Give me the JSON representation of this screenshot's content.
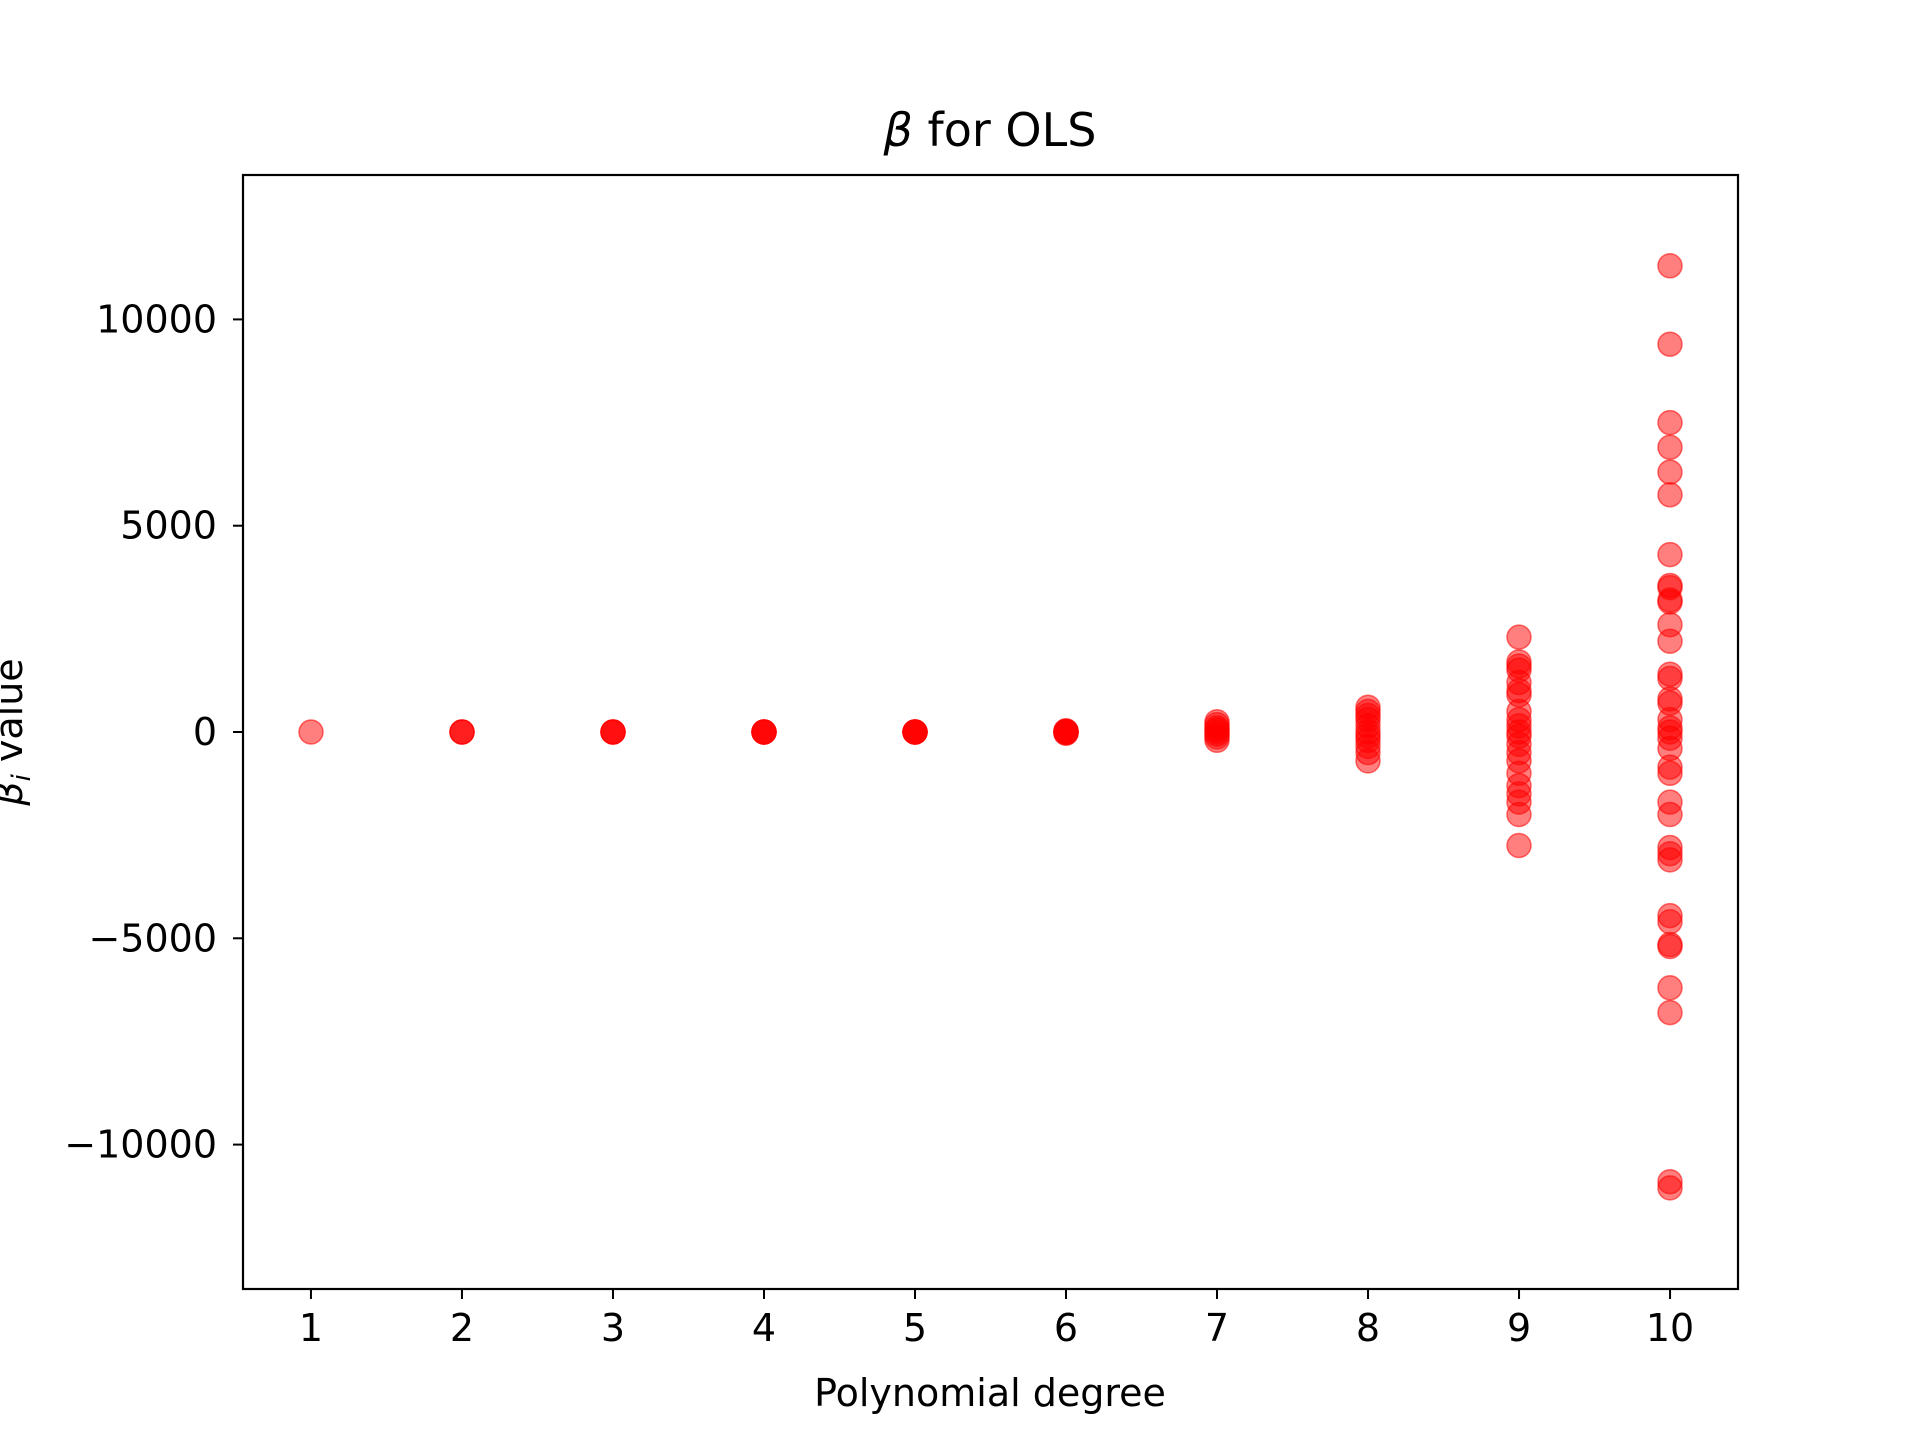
{
  "chart_data": {
    "type": "scatter",
    "title": "β for OLS",
    "title_symbol": "β",
    "title_rest": " for OLS",
    "xlabel": "Polynomial degree",
    "ylabel": "βi value",
    "ylabel_symbol": "β",
    "ylabel_subscript": "i",
    "ylabel_rest": " value",
    "xlim": [
      0.55,
      10.45
    ],
    "ylim": [
      -13500,
      13500
    ],
    "xticks": [
      1,
      2,
      3,
      4,
      5,
      6,
      7,
      8,
      9,
      10
    ],
    "yticks": [
      -10000,
      -5000,
      0,
      5000,
      10000
    ],
    "ytick_labels": [
      "−10000",
      "−5000",
      "0",
      "5000",
      "10000"
    ],
    "grid": false,
    "marker_color": "#ff0000",
    "marker_alpha": 0.5,
    "series": [
      {
        "points": [
          [
            1,
            0
          ],
          [
            2,
            0
          ],
          [
            2,
            0
          ],
          [
            2,
            0
          ],
          [
            3,
            0
          ],
          [
            3,
            0
          ],
          [
            3,
            0
          ],
          [
            3,
            0
          ],
          [
            4,
            0
          ],
          [
            4,
            0
          ],
          [
            4,
            0
          ],
          [
            4,
            0
          ],
          [
            4,
            0
          ],
          [
            5,
            0
          ],
          [
            5,
            0
          ],
          [
            5,
            0
          ],
          [
            5,
            0
          ],
          [
            5,
            0
          ],
          [
            5,
            0
          ],
          [
            6,
            30
          ],
          [
            6,
            0
          ],
          [
            6,
            -30
          ],
          [
            6,
            20
          ],
          [
            6,
            -20
          ],
          [
            6,
            0
          ],
          [
            6,
            10
          ],
          [
            7,
            250
          ],
          [
            7,
            180
          ],
          [
            7,
            100
          ],
          [
            7,
            50
          ],
          [
            7,
            0
          ],
          [
            7,
            -50
          ],
          [
            7,
            -120
          ],
          [
            7,
            -200
          ],
          [
            8,
            600
          ],
          [
            8,
            500
          ],
          [
            8,
            400
          ],
          [
            8,
            300
          ],
          [
            8,
            150
          ],
          [
            8,
            0
          ],
          [
            8,
            -100
          ],
          [
            8,
            -200
          ],
          [
            8,
            -350
          ],
          [
            8,
            -500
          ],
          [
            8,
            -700
          ],
          [
            9,
            2300
          ],
          [
            9,
            1700
          ],
          [
            9,
            1600
          ],
          [
            9,
            1500
          ],
          [
            9,
            1200
          ],
          [
            9,
            1000
          ],
          [
            9,
            900
          ],
          [
            9,
            500
          ],
          [
            9,
            300
          ],
          [
            9,
            150
          ],
          [
            9,
            0
          ],
          [
            9,
            -100
          ],
          [
            9,
            -300
          ],
          [
            9,
            -500
          ],
          [
            9,
            -700
          ],
          [
            9,
            -1000
          ],
          [
            9,
            -1300
          ],
          [
            9,
            -1500
          ],
          [
            9,
            -1700
          ],
          [
            9,
            -2000
          ],
          [
            9,
            -2750
          ],
          [
            10,
            11300
          ],
          [
            10,
            9400
          ],
          [
            10,
            7500
          ],
          [
            10,
            6900
          ],
          [
            10,
            6300
          ],
          [
            10,
            5750
          ],
          [
            10,
            4300
          ],
          [
            10,
            3550
          ],
          [
            10,
            3500
          ],
          [
            10,
            3200
          ],
          [
            10,
            3150
          ],
          [
            10,
            2600
          ],
          [
            10,
            2200
          ],
          [
            10,
            1400
          ],
          [
            10,
            1300
          ],
          [
            10,
            800
          ],
          [
            10,
            700
          ],
          [
            10,
            300
          ],
          [
            10,
            100
          ],
          [
            10,
            0
          ],
          [
            10,
            -150
          ],
          [
            10,
            -400
          ],
          [
            10,
            -850
          ],
          [
            10,
            -1000
          ],
          [
            10,
            -1700
          ],
          [
            10,
            -2000
          ],
          [
            10,
            -2800
          ],
          [
            10,
            -2950
          ],
          [
            10,
            -3100
          ],
          [
            10,
            -4450
          ],
          [
            10,
            -4600
          ],
          [
            10,
            -5150
          ],
          [
            10,
            -5200
          ],
          [
            10,
            -6200
          ],
          [
            10,
            -6800
          ],
          [
            10,
            -10900
          ],
          [
            10,
            -11050
          ]
        ]
      }
    ]
  }
}
